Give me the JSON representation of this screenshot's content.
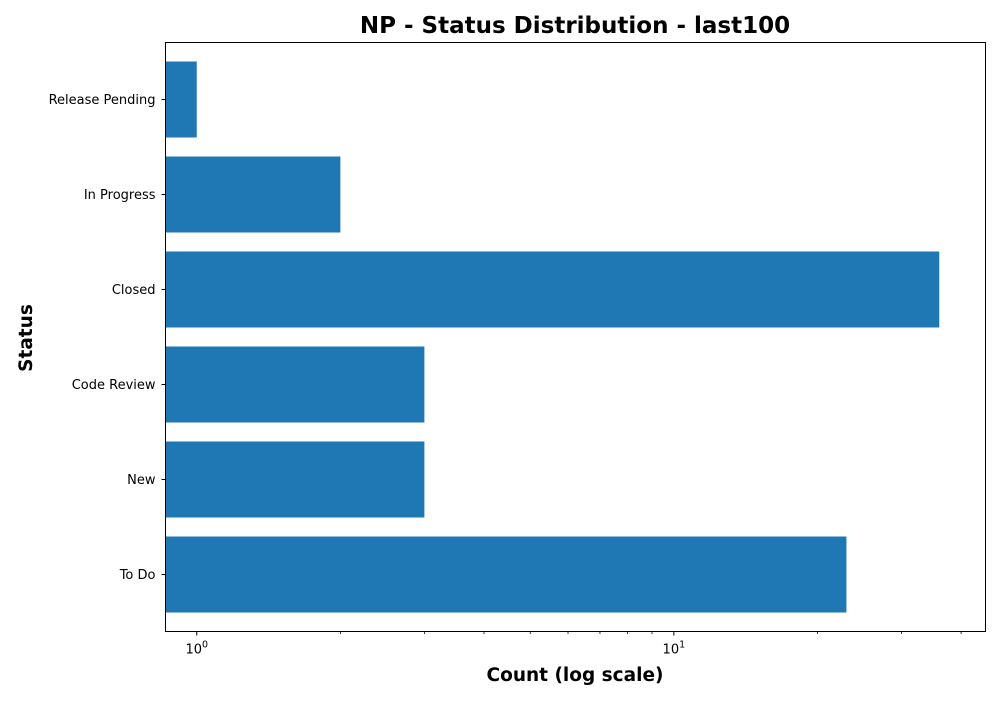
{
  "chart_data": {
    "type": "bar",
    "orientation": "horizontal",
    "title": "NP - Status Distribution - last100",
    "xlabel": "Count (log scale)",
    "ylabel": "Status",
    "x_scale": "log",
    "xlim": [
      0.86,
      45
    ],
    "categories": [
      "To Do",
      "New",
      "Code Review",
      "Closed",
      "In Progress",
      "Release Pending"
    ],
    "values": [
      23,
      3,
      3,
      36,
      2,
      1
    ],
    "x_ticks": [
      {
        "value": 1,
        "base": "10",
        "exp": "0"
      },
      {
        "value": 10,
        "base": "10",
        "exp": "1"
      }
    ],
    "minor_ticks": [
      2,
      3,
      4,
      5,
      6,
      7,
      8,
      9,
      20,
      30,
      40
    ],
    "bar_color": "#1f77b4",
    "grid": false,
    "legend": "none"
  }
}
